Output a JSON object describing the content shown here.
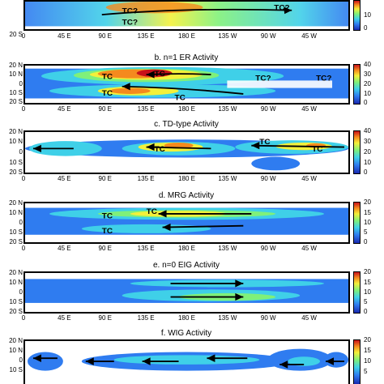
{
  "panels": [
    {
      "id": "a",
      "title": "",
      "cbar_ticks": [
        "",
        "10",
        "0"
      ],
      "tc_labels": [
        "TC?",
        "TC?",
        "TC?"
      ],
      "lon_ticks": [
        "0",
        "45 E",
        "90 E",
        "135 E",
        "180 E",
        "135 W",
        "90 W",
        "45 W"
      ],
      "lat_ticks": [
        "20 S"
      ],
      "arrows": "eastward"
    },
    {
      "id": "b",
      "title": "b. n=1 ER Activity",
      "cbar_ticks": [
        "40",
        "30",
        "20",
        "10",
        "0"
      ],
      "tc_labels": [
        "TC",
        "TC",
        "TC",
        "TC",
        "TC?",
        "TC?"
      ],
      "lon_ticks": [
        "0",
        "45 E",
        "90 E",
        "135 E",
        "180 E",
        "135 W",
        "90 W",
        "45 W"
      ],
      "lat_ticks": [
        "20 N",
        "10 N",
        "0",
        "10 S",
        "20 S"
      ],
      "arrows": "westward"
    },
    {
      "id": "c",
      "title": "c. TD-type Activity",
      "cbar_ticks": [
        "40",
        "30",
        "20",
        "10",
        "0"
      ],
      "tc_labels": [
        "TC",
        "TC",
        "TC"
      ],
      "lon_ticks": [
        "0",
        "45 E",
        "90 E",
        "135 E",
        "180 E",
        "135 W",
        "90 W",
        "45 W"
      ],
      "lat_ticks": [
        "20 N",
        "10 N",
        "0",
        "10 S",
        "20 S"
      ],
      "arrows": "westward"
    },
    {
      "id": "d",
      "title": "d. MRG Activity",
      "cbar_ticks": [
        "20",
        "15",
        "10",
        "5",
        "0"
      ],
      "tc_labels": [
        "TC",
        "TC",
        "TC"
      ],
      "lon_ticks": [
        "0",
        "45 E",
        "90 E",
        "135 E",
        "180 E",
        "135 W",
        "90 W",
        "45 W"
      ],
      "lat_ticks": [
        "20 N",
        "10 N",
        "0",
        "10 S",
        "20 S"
      ],
      "arrows": "westward"
    },
    {
      "id": "e",
      "title": "e. n=0 EIG Activity",
      "cbar_ticks": [
        "20",
        "15",
        "10",
        "5",
        "0"
      ],
      "tc_labels": [],
      "lon_ticks": [
        "0",
        "45 E",
        "90 E",
        "135 E",
        "180 E",
        "135 W",
        "90 W",
        "45 W"
      ],
      "lat_ticks": [
        "20 N",
        "10 N",
        "0",
        "10 S",
        "20 S"
      ],
      "arrows": "eastward"
    },
    {
      "id": "f",
      "title": "f. WIG Activity",
      "cbar_ticks": [
        "20",
        "15",
        "10",
        "5"
      ],
      "tc_labels": [],
      "lon_ticks": [],
      "lat_ticks": [
        "20 N",
        "10 N",
        "0",
        "10 S"
      ],
      "arrows": "westward"
    }
  ]
}
